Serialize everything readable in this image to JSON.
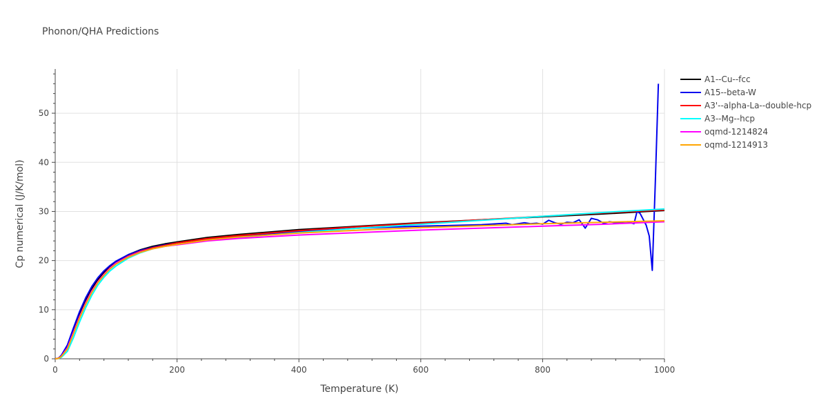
{
  "chart_data": {
    "type": "line",
    "title": "Phonon/QHA Predictions",
    "xlabel": "Temperature (K)",
    "ylabel": "Cp numerical (J/K/mol)",
    "xlim": [
      0,
      1000
    ],
    "ylim": [
      0,
      59
    ],
    "x_ticks": [
      0,
      200,
      400,
      600,
      800,
      1000
    ],
    "y_ticks": [
      0,
      10,
      20,
      30,
      40,
      50
    ],
    "grid": true,
    "legend_position": "right",
    "series": [
      {
        "name": "A1--Cu--fcc",
        "color": "#000000",
        "x": [
          0,
          5,
          10,
          20,
          30,
          40,
          50,
          60,
          70,
          80,
          90,
          100,
          120,
          140,
          160,
          180,
          200,
          250,
          300,
          400,
          500,
          600,
          700,
          800,
          900,
          1000
        ],
        "values": [
          0,
          0.1,
          0.6,
          2.5,
          5.8,
          9.0,
          11.8,
          14.2,
          16.1,
          17.6,
          18.8,
          19.8,
          21.2,
          22.2,
          22.9,
          23.4,
          23.8,
          24.7,
          25.3,
          26.3,
          27.0,
          27.7,
          28.3,
          28.9,
          29.5,
          30.2
        ]
      },
      {
        "name": "A15--beta-W",
        "color": "#0000ee",
        "x": [
          0,
          5,
          10,
          20,
          30,
          40,
          50,
          60,
          70,
          80,
          90,
          100,
          120,
          140,
          160,
          180,
          200,
          250,
          300,
          400,
          500,
          600,
          700,
          740,
          750,
          760,
          770,
          780,
          790,
          800,
          810,
          820,
          830,
          840,
          850,
          860,
          870,
          880,
          890,
          900,
          910,
          920,
          930,
          940,
          950,
          955,
          960,
          970,
          975,
          980,
          985,
          990
        ],
        "values": [
          0,
          0.1,
          0.7,
          2.8,
          6.3,
          9.6,
          12.4,
          14.7,
          16.5,
          17.9,
          19.0,
          19.9,
          21.2,
          22.1,
          22.7,
          23.2,
          23.6,
          24.4,
          25.0,
          25.9,
          26.6,
          27.0,
          27.3,
          27.6,
          27.3,
          27.5,
          27.7,
          27.5,
          27.6,
          27.4,
          28.2,
          27.7,
          27.4,
          27.8,
          27.7,
          28.3,
          26.6,
          28.6,
          28.3,
          27.6,
          27.9,
          27.7,
          27.8,
          27.9,
          27.5,
          30.0,
          29.6,
          27.2,
          25.0,
          18.0,
          36.0,
          56.0
        ]
      },
      {
        "name": "A3'--alpha-La--double-hcp",
        "color": "#ff0000",
        "x": [
          0,
          5,
          10,
          20,
          30,
          40,
          50,
          60,
          70,
          80,
          90,
          100,
          120,
          140,
          160,
          180,
          200,
          250,
          300,
          400,
          500,
          600,
          700,
          800,
          900,
          1000
        ],
        "values": [
          0,
          0.1,
          0.5,
          2.2,
          5.3,
          8.5,
          11.3,
          13.7,
          15.7,
          17.2,
          18.5,
          19.5,
          20.9,
          21.9,
          22.6,
          23.1,
          23.6,
          24.5,
          25.1,
          26.1,
          26.9,
          27.6,
          28.3,
          29.0,
          29.7,
          30.3
        ]
      },
      {
        "name": "A3--Mg--hcp",
        "color": "#00ffff",
        "x": [
          0,
          5,
          10,
          20,
          30,
          40,
          50,
          60,
          70,
          80,
          90,
          100,
          120,
          140,
          160,
          180,
          200,
          250,
          300,
          400,
          500,
          600,
          700,
          800,
          900,
          1000
        ],
        "values": [
          0,
          0.05,
          0.3,
          1.5,
          4.3,
          7.5,
          10.4,
          12.9,
          15.0,
          16.6,
          17.9,
          18.9,
          20.5,
          21.6,
          22.4,
          22.9,
          23.3,
          24.1,
          24.7,
          25.7,
          26.6,
          27.4,
          28.2,
          29.0,
          29.8,
          30.5
        ]
      },
      {
        "name": "oqmd-1214824",
        "color": "#ff00ff",
        "x": [
          0,
          5,
          10,
          20,
          30,
          40,
          50,
          60,
          70,
          80,
          90,
          100,
          120,
          140,
          160,
          180,
          200,
          250,
          300,
          400,
          500,
          600,
          700,
          800,
          900,
          1000
        ],
        "values": [
          0,
          0.08,
          0.5,
          2.2,
          5.4,
          8.6,
          11.4,
          13.8,
          15.7,
          17.2,
          18.5,
          19.5,
          20.8,
          21.8,
          22.4,
          22.9,
          23.2,
          24.0,
          24.5,
          25.2,
          25.7,
          26.2,
          26.6,
          27.0,
          27.4,
          27.9
        ]
      },
      {
        "name": "oqmd-1214913",
        "color": "#ffa500",
        "x": [
          0,
          5,
          10,
          20,
          30,
          40,
          50,
          60,
          70,
          80,
          90,
          100,
          120,
          140,
          160,
          180,
          200,
          250,
          300,
          400,
          500,
          600,
          700,
          800,
          900,
          1000
        ],
        "values": [
          0,
          0.07,
          0.45,
          2.0,
          5.1,
          8.3,
          11.1,
          13.5,
          15.5,
          17.0,
          18.3,
          19.3,
          20.7,
          21.7,
          22.4,
          22.9,
          23.3,
          24.2,
          24.8,
          25.6,
          26.2,
          26.7,
          27.1,
          27.5,
          27.8,
          28.1
        ]
      }
    ]
  }
}
